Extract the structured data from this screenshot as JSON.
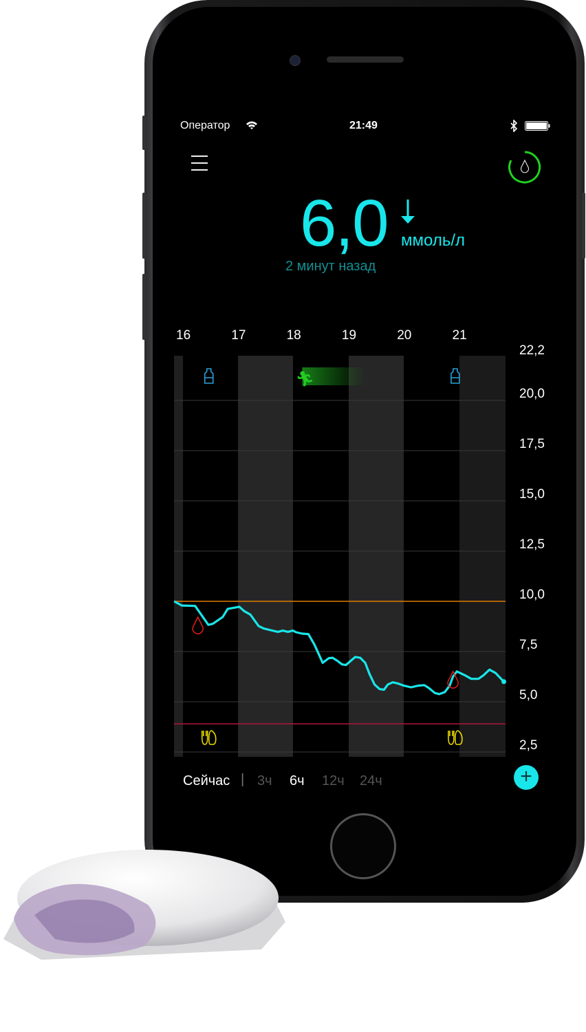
{
  "status_bar": {
    "carrier": "Оператор",
    "time": "21:49",
    "wifi_icon": "wifi-icon",
    "bluetooth_icon": "bluetooth-icon",
    "battery_icon": "battery-icon"
  },
  "header": {
    "menu_icon": "hamburger-menu-icon",
    "sensor_icon": "blood-drop-ring-icon",
    "sensor_ring_color": "#1fd21f"
  },
  "reading": {
    "value": "6,0",
    "trend": "falling",
    "unit": "ммоль/л",
    "age": "2 минут назад",
    "color": "#19e6ea"
  },
  "chart_data": {
    "type": "line",
    "x_tick_labels": [
      "16",
      "17",
      "18",
      "19",
      "20",
      "21"
    ],
    "y_tick_labels": [
      "22,2",
      "20,0",
      "17,5",
      "15,0",
      "12,5",
      "10,0",
      "7,5",
      "5,0",
      "2,5"
    ],
    "y_ticks": [
      22.2,
      20,
      17.5,
      15,
      12.5,
      10,
      7.5,
      5,
      2.5
    ],
    "xlim": [
      15.84,
      21.84
    ],
    "ylim": [
      2,
      22.2
    ],
    "high_threshold": 10.0,
    "low_threshold": 3.9,
    "high_color": "#e07b00",
    "low_color": "#b0173a",
    "line_color": "#19e6ea",
    "grid": true,
    "series": [
      {
        "x": [
          15.84,
          15.98,
          16.22,
          16.46,
          16.54,
          16.72,
          16.81,
          17.02,
          17.11,
          17.22,
          17.37,
          17.46,
          17.59,
          17.72,
          17.81,
          17.9,
          17.99,
          18.05,
          18.16,
          18.27,
          18.38,
          18.53,
          18.64,
          18.71,
          18.79,
          18.88,
          18.95,
          19.12,
          19.21,
          19.3,
          19.38,
          19.47,
          19.56,
          19.64,
          19.71,
          19.8,
          19.89,
          20.0,
          20.13,
          20.26,
          20.37,
          20.45,
          20.56,
          20.64,
          20.74,
          20.83,
          20.89,
          20.96,
          21.11,
          21.22,
          21.35,
          21.44,
          21.55,
          21.66,
          21.81
        ],
        "y": [
          10.0,
          9.79,
          9.77,
          8.83,
          8.88,
          9.22,
          9.62,
          9.73,
          9.51,
          9.34,
          8.77,
          8.65,
          8.56,
          8.48,
          8.54,
          8.48,
          8.54,
          8.46,
          8.39,
          8.37,
          7.85,
          6.94,
          7.17,
          7.19,
          7.05,
          6.86,
          6.83,
          7.23,
          7.19,
          6.94,
          6.37,
          5.86,
          5.63,
          5.6,
          5.86,
          5.97,
          5.91,
          5.8,
          5.72,
          5.8,
          5.83,
          5.69,
          5.44,
          5.38,
          5.48,
          5.8,
          6.26,
          6.51,
          6.31,
          6.14,
          6.14,
          6.31,
          6.6,
          6.43,
          6.0
        ]
      }
    ],
    "events": [
      {
        "type": "insulin",
        "icon": "insulin-vial-icon",
        "x": 16.47,
        "color": "#2a9fd8"
      },
      {
        "type": "insulin",
        "icon": "insulin-vial-icon",
        "x": 20.93,
        "color": "#2a9fd8"
      },
      {
        "type": "exercise",
        "icon": "running-icon",
        "x": 18.16,
        "end": 19.3,
        "color": "#22cc22"
      },
      {
        "type": "meal",
        "icon": "fork-knife-icon",
        "x": 16.47,
        "color": "#e8d800"
      },
      {
        "type": "meal",
        "icon": "fork-knife-icon",
        "x": 20.93,
        "color": "#e8d800"
      },
      {
        "type": "blood_test",
        "icon": "blood-drop-icon",
        "x": 16.27,
        "y": 8.8,
        "color": "#e0201a"
      },
      {
        "type": "blood_test",
        "icon": "blood-drop-icon",
        "x": 20.89,
        "y": 6.1,
        "color": "#e0201a"
      }
    ]
  },
  "range_selector": {
    "now": "Сейчас",
    "options": [
      {
        "label": "3ч",
        "selected": false
      },
      {
        "label": "6ч",
        "selected": true
      },
      {
        "label": "12ч",
        "selected": false
      },
      {
        "label": "24ч",
        "selected": false
      }
    ]
  },
  "add_button": {
    "icon": "plus-icon",
    "label": "+",
    "color": "#19e6ea"
  }
}
